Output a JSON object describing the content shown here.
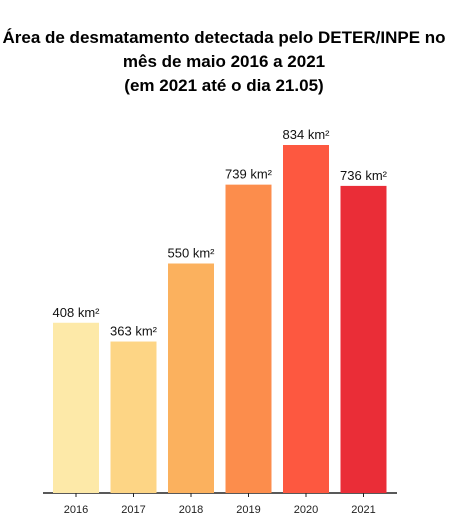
{
  "chart_data": {
    "type": "bar",
    "title": [
      "Área de desmatamento detectada pelo DETER/INPE no",
      "mês de maio 2016 a 2021",
      "(em 2021 até o dia 21.05)"
    ],
    "categories": [
      "2016",
      "2017",
      "2018",
      "2019",
      "2020",
      "2021"
    ],
    "values": [
      408,
      363,
      550,
      739,
      834,
      736
    ],
    "value_labels": [
      "408 km²",
      "363 km²",
      "550 km²",
      "739 km²",
      "834 km²",
      "736 km²"
    ],
    "colors": [
      "#fde9a8",
      "#fdd585",
      "#fbb15e",
      "#fc8d4c",
      "#fd5840",
      "#ea2d37"
    ]
  }
}
